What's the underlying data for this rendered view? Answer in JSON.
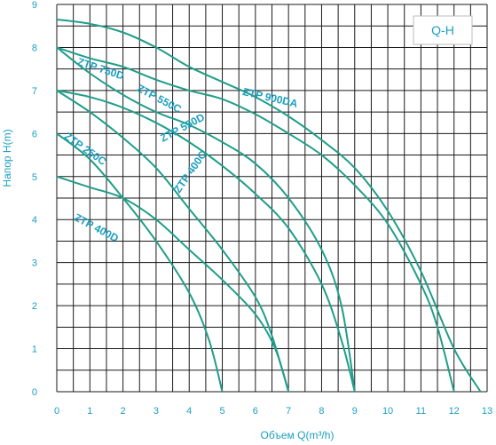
{
  "chart_data": {
    "type": "line",
    "title": "",
    "badge": "Q-H",
    "xlabel": "Объем Q(m³/h)",
    "ylabel": "Напор H(m)",
    "xlim": [
      0,
      13
    ],
    "ylim": [
      0,
      9
    ],
    "x_ticks": [
      "0",
      "1",
      "2",
      "3",
      "4",
      "5",
      "6",
      "7",
      "8",
      "9",
      "10",
      "11",
      "12",
      "13"
    ],
    "y_ticks": [
      "0",
      "1",
      "2",
      "3",
      "4",
      "5",
      "6",
      "7",
      "8",
      "9"
    ],
    "grid": true,
    "line_color": "#1f9e8a",
    "text_color": "#1a9fc0",
    "series": [
      {
        "name": "ZTP 750D",
        "label_at": [
          0.6,
          7.6
        ],
        "label_angle": 18,
        "points": [
          [
            0,
            8.65
          ],
          [
            1,
            8.55
          ],
          [
            2,
            8.35
          ],
          [
            3,
            8.0
          ],
          [
            4,
            7.55
          ],
          [
            5,
            7.2
          ],
          [
            6,
            6.85
          ],
          [
            7,
            6.4
          ],
          [
            8,
            5.85
          ],
          [
            9,
            5.2
          ],
          [
            10,
            4.2
          ],
          [
            11,
            2.8
          ],
          [
            12,
            1.0
          ],
          [
            12.8,
            0
          ]
        ]
      },
      {
        "name": "ZTP 900DA",
        "label_at": [
          5.6,
          6.9
        ],
        "label_angle": 13,
        "points": [
          [
            0,
            8.0
          ],
          [
            1,
            7.75
          ],
          [
            2,
            7.55
          ],
          [
            3,
            7.25
          ],
          [
            4,
            7.0
          ],
          [
            5,
            6.8
          ],
          [
            6,
            6.45
          ],
          [
            7,
            6.0
          ],
          [
            8,
            5.5
          ],
          [
            9,
            4.8
          ],
          [
            10,
            3.9
          ],
          [
            11,
            2.5
          ],
          [
            11.5,
            1.5
          ],
          [
            12,
            0
          ]
        ]
      },
      {
        "name": "ZTP 550C",
        "label_at": [
          2.4,
          7.0
        ],
        "label_angle": 28,
        "points": [
          [
            0,
            8.0
          ],
          [
            1,
            7.4
          ],
          [
            2,
            6.9
          ],
          [
            3,
            6.5
          ],
          [
            4,
            6.2
          ],
          [
            5,
            5.8
          ],
          [
            6,
            5.3
          ],
          [
            7,
            4.5
          ],
          [
            8,
            3.3
          ],
          [
            8.6,
            2.0
          ],
          [
            9,
            0
          ]
        ]
      },
      {
        "name": "ZTP 550D",
        "label_at": [
          3.2,
          5.8
        ],
        "label_angle": -28,
        "points": [
          [
            0,
            7.0
          ],
          [
            1,
            6.85
          ],
          [
            2,
            6.6
          ],
          [
            3,
            6.25
          ],
          [
            4,
            5.8
          ],
          [
            5,
            5.25
          ],
          [
            6,
            4.6
          ],
          [
            7,
            3.8
          ],
          [
            8,
            2.5
          ],
          [
            8.6,
            1.2
          ],
          [
            9,
            0
          ]
        ]
      },
      {
        "name": "ZTP 250C",
        "label_at": [
          0.2,
          5.9
        ],
        "label_angle": 35,
        "points": [
          [
            0,
            7.0
          ],
          [
            1,
            6.5
          ],
          [
            2,
            5.9
          ],
          [
            3,
            5.2
          ],
          [
            4,
            4.25
          ],
          [
            5,
            3.3
          ],
          [
            6,
            2.2
          ],
          [
            6.5,
            1.3
          ],
          [
            7,
            0
          ]
        ]
      },
      {
        "name": "ZTP 400C",
        "label_at": [
          3.7,
          4.6
        ],
        "label_angle": -55,
        "points": [
          [
            0,
            6.0
          ],
          [
            1,
            5.4
          ],
          [
            2,
            4.5
          ],
          [
            3,
            3.5
          ],
          [
            4,
            2.3
          ],
          [
            4.6,
            1.2
          ],
          [
            5,
            0
          ]
        ]
      },
      {
        "name": "ZTP 400D",
        "label_at": [
          0.5,
          4.0
        ],
        "label_angle": 28,
        "points": [
          [
            0,
            5.0
          ],
          [
            1,
            4.75
          ],
          [
            2,
            4.5
          ],
          [
            3,
            4.0
          ],
          [
            4,
            3.3
          ],
          [
            5,
            2.6
          ],
          [
            6,
            1.8
          ],
          [
            6.6,
            1.0
          ],
          [
            7,
            0
          ]
        ]
      }
    ]
  }
}
